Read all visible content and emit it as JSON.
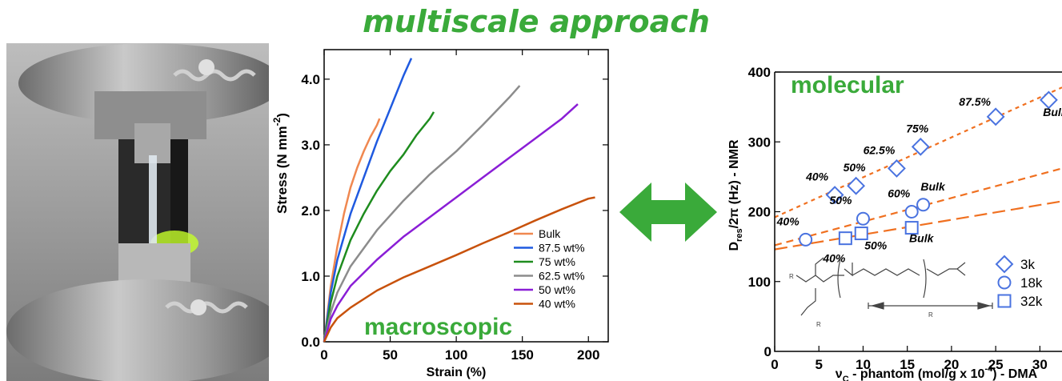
{
  "heading": "multiscale approach",
  "colors": {
    "accent_green": "#3aaa3a",
    "marker_blue": "#4a73e0",
    "fit_orange": "#f07020"
  },
  "photo": {
    "subject": "tensile-testing-rig-photo"
  },
  "chart_data": [
    {
      "type": "line",
      "xlabel": "Strain (%)",
      "ylabel": "Stress (N mm^-2)",
      "ylabel_main": "Stress (N mm",
      "ylabel_exp": "-2",
      "ylabel_close": ")",
      "annotation": "macroscopic",
      "xlim": [
        0,
        215
      ],
      "ylim": [
        0,
        4.45
      ],
      "xticks": [
        0,
        50,
        100,
        150,
        200
      ],
      "xtick_labels": [
        "0",
        "50",
        "100",
        "150",
        "200"
      ],
      "yticks": [
        0,
        1,
        2,
        3,
        4
      ],
      "ytick_labels": [
        "0.0",
        "1.0",
        "2.0",
        "3.0",
        "4.0"
      ],
      "legend_position": "bottom-right",
      "grid": false,
      "series": [
        {
          "name": "Bulk",
          "color": "#f08850",
          "points": [
            [
              0,
              0
            ],
            [
              5,
              0.85
            ],
            [
              10,
              1.45
            ],
            [
              15,
              1.95
            ],
            [
              20,
              2.35
            ],
            [
              25,
              2.65
            ],
            [
              30,
              2.9
            ],
            [
              35,
              3.12
            ],
            [
              40,
              3.3
            ],
            [
              42,
              3.4
            ]
          ]
        },
        {
          "name": "87.5 wt%",
          "color": "#1f5ae0",
          "points": [
            [
              0,
              0
            ],
            [
              5,
              0.75
            ],
            [
              10,
              1.25
            ],
            [
              20,
              1.95
            ],
            [
              30,
              2.5
            ],
            [
              40,
              3.05
            ],
            [
              50,
              3.55
            ],
            [
              60,
              4.05
            ],
            [
              66,
              4.32
            ]
          ]
        },
        {
          "name": "75 wt%",
          "color": "#1e8c1e",
          "points": [
            [
              0,
              0
            ],
            [
              5,
              0.6
            ],
            [
              10,
              1.0
            ],
            [
              20,
              1.55
            ],
            [
              30,
              1.95
            ],
            [
              40,
              2.3
            ],
            [
              50,
              2.6
            ],
            [
              60,
              2.85
            ],
            [
              70,
              3.15
            ],
            [
              80,
              3.4
            ],
            [
              83,
              3.5
            ]
          ]
        },
        {
          "name": "62.5 wt%",
          "color": "#8c8c8c",
          "points": [
            [
              0,
              0
            ],
            [
              5,
              0.45
            ],
            [
              10,
              0.75
            ],
            [
              20,
              1.15
            ],
            [
              40,
              1.7
            ],
            [
              60,
              2.15
            ],
            [
              80,
              2.55
            ],
            [
              100,
              2.9
            ],
            [
              120,
              3.3
            ],
            [
              140,
              3.72
            ],
            [
              148,
              3.9
            ]
          ]
        },
        {
          "name": "50 wt%",
          "color": "#8a1ed6",
          "points": [
            [
              0,
              0
            ],
            [
              5,
              0.35
            ],
            [
              10,
              0.55
            ],
            [
              20,
              0.85
            ],
            [
              40,
              1.25
            ],
            [
              60,
              1.6
            ],
            [
              80,
              1.9
            ],
            [
              100,
              2.2
            ],
            [
              120,
              2.5
            ],
            [
              140,
              2.8
            ],
            [
              160,
              3.1
            ],
            [
              180,
              3.4
            ],
            [
              192,
              3.62
            ]
          ]
        },
        {
          "name": "40 wt%",
          "color": "#c8520c",
          "points": [
            [
              0,
              0
            ],
            [
              5,
              0.22
            ],
            [
              10,
              0.36
            ],
            [
              20,
              0.52
            ],
            [
              40,
              0.78
            ],
            [
              60,
              0.98
            ],
            [
              80,
              1.15
            ],
            [
              100,
              1.32
            ],
            [
              120,
              1.5
            ],
            [
              140,
              1.67
            ],
            [
              160,
              1.85
            ],
            [
              180,
              2.02
            ],
            [
              200,
              2.18
            ],
            [
              205,
              2.2
            ]
          ]
        }
      ]
    },
    {
      "type": "scatter",
      "xlabel": "ν_C - phantom (mol/g x 10^-4) - DMA",
      "xlabel_pre": "ν",
      "xlabel_sub": "C",
      "xlabel_mid": " - phantom (mol/g x 10",
      "xlabel_exp": "-4",
      "xlabel_post": ") - DMA",
      "ylabel": "D_res/2π (Hz) - NMR",
      "ylabel_pre": "D",
      "ylabel_sub": "res",
      "ylabel_post": "/2π (Hz) - NMR",
      "annotation": "molecular",
      "xlim": [
        0,
        32.5
      ],
      "ylim": [
        0,
        400
      ],
      "xticks": [
        0,
        5,
        10,
        15,
        20,
        25,
        30
      ],
      "xtick_labels": [
        "0",
        "5",
        "10",
        "15",
        "20",
        "25",
        "30"
      ],
      "yticks": [
        100,
        200,
        300,
        400
      ],
      "ytick_labels": [
        "100",
        "200",
        "300",
        "400"
      ],
      "legend_position": "bottom-right",
      "grid": false,
      "legend": [
        {
          "name": "3k",
          "marker": "diamond"
        },
        {
          "name": "18k",
          "marker": "circle"
        },
        {
          "name": "32k",
          "marker": "square"
        }
      ],
      "series": [
        {
          "name": "3k",
          "marker": "diamond",
          "points": [
            [
              6.8,
              224
            ],
            [
              9.2,
              237
            ],
            [
              13.8,
              262
            ],
            [
              16.5,
              293
            ],
            [
              25,
              336
            ],
            [
              31,
              360
            ]
          ],
          "labels": [
            "40%",
            "50%",
            "62.5%",
            "75%",
            "87.5%",
            "Bulk"
          ]
        },
        {
          "name": "18k",
          "marker": "circle",
          "points": [
            [
              3.5,
              160
            ],
            [
              10,
              190
            ],
            [
              15.5,
              200
            ],
            [
              16.8,
              210
            ]
          ],
          "labels": [
            "40%",
            "50%",
            "60%",
            "Bulk"
          ]
        },
        {
          "name": "32k",
          "marker": "square",
          "points": [
            [
              8,
              162
            ],
            [
              9.8,
              169
            ],
            [
              15.5,
              177
            ]
          ],
          "labels": [
            "40%",
            "50%",
            "Bulk"
          ]
        }
      ],
      "fit_lines": [
        {
          "marker": "diamond",
          "from": [
            0,
            192
          ],
          "to": [
            32.5,
            378
          ],
          "dash": "short"
        },
        {
          "marker": "circle",
          "from": [
            0,
            152
          ],
          "to": [
            32.5,
            262
          ],
          "dash": "medium"
        },
        {
          "marker": "square",
          "from": [
            0,
            146
          ],
          "to": [
            32.5,
            215
          ],
          "dash": "long"
        }
      ],
      "molecule_labels": [
        "R",
        "R",
        "R"
      ]
    }
  ]
}
